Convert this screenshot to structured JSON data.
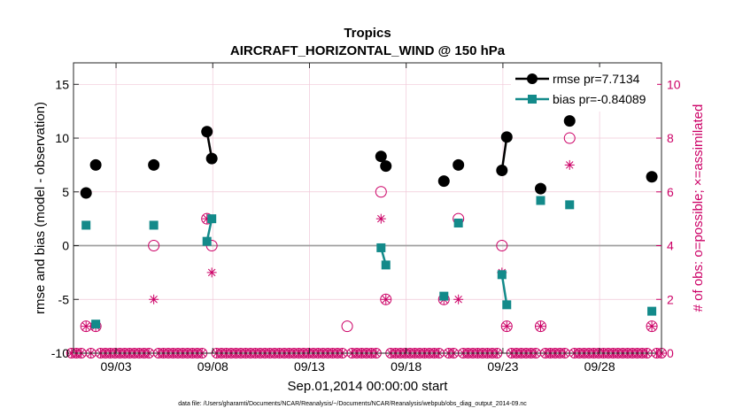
{
  "chart_data": {
    "type": "scatter",
    "title": "Tropics",
    "subtitle": "AIRCRAFT_HORIZONTAL_WIND @ 150 hPa",
    "xlabel": "Sep.01,2014 00:00:00 start",
    "ylabel_left": "rmse and bias (model - observation)",
    "ylabel_right": "# of obs: o=possible; ×=assimilated",
    "footer": "data file: /Users/gharamti/Documents/NCAR/Reanalysis/~/Documents/NCAR/Reanalysis/webpub/obs_diag_output_2014-09.nc",
    "xlim": [
      0.6,
      31.0
    ],
    "ylim_left": [
      -10,
      17
    ],
    "ylim_right": [
      0,
      10.8
    ],
    "x_ticks": [
      2.8,
      7.8,
      12.8,
      17.8,
      22.8,
      27.8
    ],
    "x_ticklabels": [
      "09/03",
      "09/08",
      "09/13",
      "09/18",
      "09/23",
      "09/28"
    ],
    "y_ticks_left": [
      -10,
      -5,
      0,
      5,
      10,
      15
    ],
    "y_ticklabels_left": [
      "-10",
      "-5",
      "0",
      "5",
      "10",
      "15"
    ],
    "y_ticks_right": [
      0,
      2,
      4,
      6,
      8,
      10
    ],
    "y_ticklabels_right": [
      "0",
      "2",
      "4",
      "6",
      "8",
      "10"
    ],
    "legend": {
      "position": "top-right",
      "entries": [
        "rmse pr=7.7134",
        "bias pr=-0.84089"
      ]
    },
    "colors": {
      "rmse": "#000000",
      "bias": "#138a8a",
      "obs": "#cc0066",
      "zero_line": "#a0a0a0",
      "grid": "#f0c8d8"
    },
    "rmse_segments": [
      [
        [
          1.25,
          4.9
        ]
      ],
      [
        [
          1.75,
          7.5
        ]
      ],
      [
        [
          4.75,
          7.5
        ]
      ],
      [
        [
          7.5,
          10.6
        ],
        [
          7.75,
          8.1
        ]
      ],
      [
        [
          16.5,
          8.3
        ],
        [
          16.75,
          7.4
        ]
      ],
      [
        [
          19.75,
          6.0
        ]
      ],
      [
        [
          20.5,
          7.5
        ]
      ],
      [
        [
          22.75,
          7.0
        ],
        [
          23.0,
          10.1
        ]
      ],
      [
        [
          24.75,
          5.3
        ]
      ],
      [
        [
          26.25,
          11.6
        ]
      ],
      [
        [
          30.5,
          6.4
        ]
      ]
    ],
    "bias_segments": [
      [
        [
          1.25,
          1.9
        ]
      ],
      [
        [
          1.75,
          -7.3
        ]
      ],
      [
        [
          4.75,
          1.9
        ]
      ],
      [
        [
          7.5,
          0.4
        ],
        [
          7.75,
          2.5
        ]
      ],
      [
        [
          16.5,
          -0.2
        ],
        [
          16.75,
          -1.8
        ]
      ],
      [
        [
          19.75,
          -4.7
        ]
      ],
      [
        [
          20.5,
          2.1
        ]
      ],
      [
        [
          22.75,
          -2.7
        ],
        [
          23.0,
          -5.5
        ]
      ],
      [
        [
          24.75,
          4.2
        ]
      ],
      [
        [
          26.25,
          3.8
        ]
      ],
      [
        [
          30.5,
          -6.1
        ]
      ]
    ],
    "obs_possible": [
      [
        1.25,
        1
      ],
      [
        1.75,
        1
      ],
      [
        4.75,
        4
      ],
      [
        7.5,
        5
      ],
      [
        7.75,
        4
      ],
      [
        14.75,
        1
      ],
      [
        16.5,
        6
      ],
      [
        16.75,
        2
      ],
      [
        19.75,
        2
      ],
      [
        20.5,
        5
      ],
      [
        22.75,
        4
      ],
      [
        23.0,
        1
      ],
      [
        24.75,
        1
      ],
      [
        26.25,
        8
      ],
      [
        30.5,
        1
      ]
    ],
    "obs_assimilated": [
      [
        1.25,
        1
      ],
      [
        1.75,
        1
      ],
      [
        4.75,
        2
      ],
      [
        7.5,
        5
      ],
      [
        7.75,
        3
      ],
      [
        16.5,
        5
      ],
      [
        16.75,
        2
      ],
      [
        19.75,
        2
      ],
      [
        20.5,
        2
      ],
      [
        22.75,
        3
      ],
      [
        23.0,
        1
      ],
      [
        24.75,
        1
      ],
      [
        26.25,
        7
      ],
      [
        30.5,
        1
      ]
    ],
    "obs_zero_x": [
      0.5,
      0.75,
      1.0,
      1.5,
      2.0,
      2.25,
      2.5,
      2.75,
      3.0,
      3.25,
      3.5,
      3.75,
      4.0,
      4.25,
      4.5,
      5.0,
      5.25,
      5.5,
      5.75,
      6.0,
      6.25,
      6.5,
      6.75,
      7.0,
      7.25,
      8.0,
      8.25,
      8.5,
      8.75,
      9.0,
      9.25,
      9.5,
      9.75,
      10.0,
      10.25,
      10.5,
      10.75,
      11.0,
      11.25,
      11.5,
      11.75,
      12.0,
      12.25,
      12.5,
      12.75,
      13.0,
      13.25,
      13.5,
      13.75,
      14.0,
      14.25,
      14.5,
      15.0,
      15.25,
      15.5,
      15.75,
      16.0,
      16.25,
      17.0,
      17.25,
      17.5,
      17.75,
      18.0,
      18.25,
      18.5,
      18.75,
      19.0,
      19.25,
      19.5,
      20.0,
      20.25,
      20.75,
      21.0,
      21.25,
      21.5,
      21.75,
      22.0,
      22.25,
      22.5,
      23.25,
      23.5,
      23.75,
      24.0,
      24.25,
      24.5,
      25.0,
      25.25,
      25.5,
      25.75,
      26.0,
      26.5,
      26.75,
      27.0,
      27.25,
      27.5,
      27.75,
      28.0,
      28.25,
      28.5,
      28.75,
      29.0,
      29.25,
      29.5,
      29.75,
      30.0,
      30.25,
      30.75,
      31.0
    ]
  }
}
